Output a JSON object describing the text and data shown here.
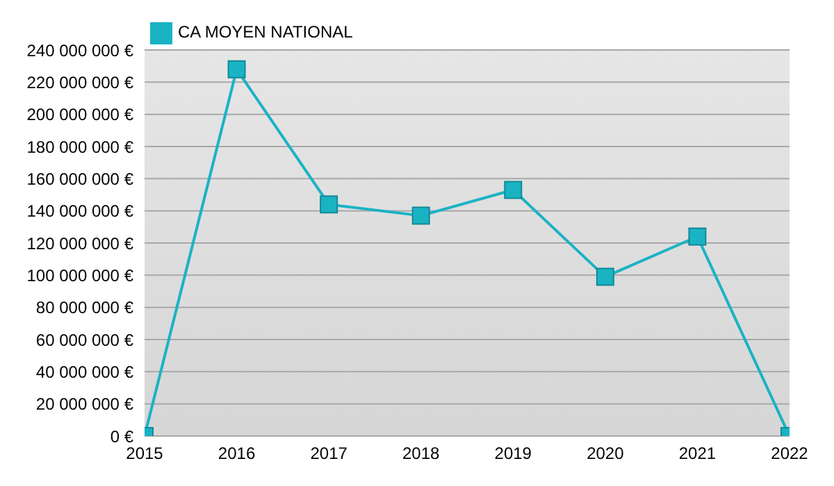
{
  "chart_data": {
    "type": "line",
    "x": [
      2015,
      2016,
      2017,
      2018,
      2019,
      2020,
      2021,
      2022
    ],
    "series": [
      {
        "name": "CA MOYEN NATIONAL",
        "color": "#1ab3c4",
        "values": [
          0,
          228000000,
          144000000,
          137000000,
          153000000,
          99000000,
          124000000,
          0
        ]
      }
    ],
    "xlim": [
      2015,
      2022
    ],
    "xticks": [
      2015,
      2016,
      2017,
      2018,
      2019,
      2020,
      2021,
      2022
    ],
    "ylim": [
      0,
      240000000
    ],
    "yticks": [
      {
        "value": 0,
        "label": "0 €"
      },
      {
        "value": 20000000,
        "label": "20 000 000 €"
      },
      {
        "value": 40000000,
        "label": "40 000 000 €"
      },
      {
        "value": 60000000,
        "label": "60 000 000 €"
      },
      {
        "value": 80000000,
        "label": "80 000 000 €"
      },
      {
        "value": 100000000,
        "label": "100 000 000 €"
      },
      {
        "value": 120000000,
        "label": "120 000 000 €"
      },
      {
        "value": 140000000,
        "label": "140 000 000 €"
      },
      {
        "value": 160000000,
        "label": "160 000 000 €"
      },
      {
        "value": 180000000,
        "label": "180 000 000 €"
      },
      {
        "value": 200000000,
        "label": "200 000 000 €"
      },
      {
        "value": 220000000,
        "label": "220 000 000 €"
      },
      {
        "value": 240000000,
        "label": "240 000 000 €"
      }
    ],
    "grid": "y",
    "legend": "top left",
    "marker": "square",
    "line_style": "solid"
  }
}
